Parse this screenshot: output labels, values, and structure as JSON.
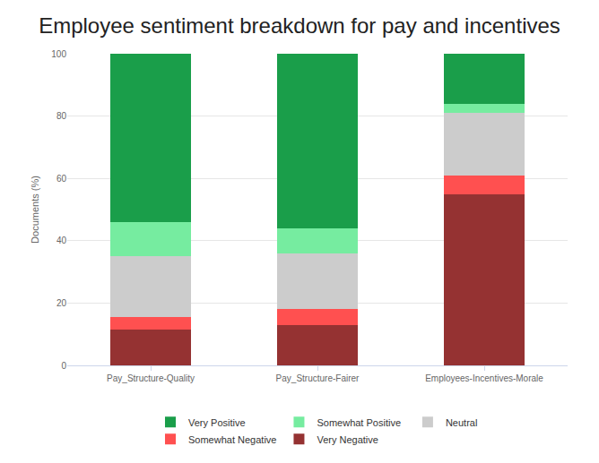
{
  "chart_data": {
    "type": "bar",
    "stacked": true,
    "title": "Employee sentiment breakdown for pay and incentives",
    "y_label": "Documents (%)",
    "categories": [
      "Pay_Structure-Quality",
      "Pay_Structure-Fairer",
      "Employees-Incentives-Morale"
    ],
    "series": [
      {
        "name": "Very Positive",
        "color": "#1a9e4a",
        "values": [
          54,
          56,
          16
        ]
      },
      {
        "name": "Somewhat Positive",
        "color": "#76eca0",
        "values": [
          11,
          8,
          3
        ]
      },
      {
        "name": "Neutral",
        "color": "#cccccc",
        "values": [
          19.5,
          18,
          20
        ]
      },
      {
        "name": "Somewhat Negative",
        "color": "#ff5050",
        "values": [
          4,
          5,
          6
        ]
      },
      {
        "name": "Very Negative",
        "color": "#953232",
        "values": [
          11.5,
          13,
          55
        ]
      }
    ],
    "ylim": [
      0,
      100
    ],
    "yticks": [
      0,
      20,
      40,
      60,
      80,
      100
    ],
    "grid": true,
    "legend": "bottom"
  }
}
